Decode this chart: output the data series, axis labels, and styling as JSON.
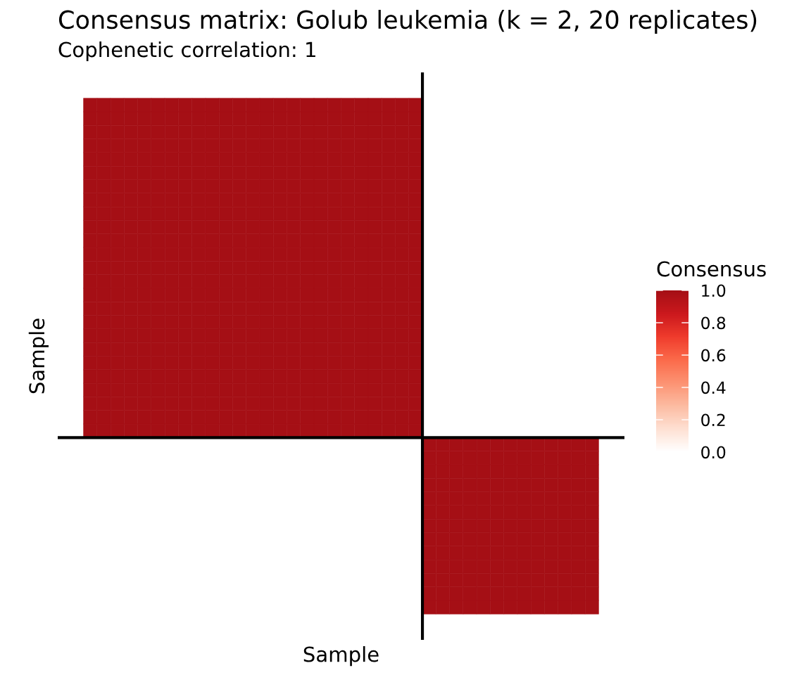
{
  "chart_data": {
    "type": "heatmap",
    "title": "Consensus matrix: Golub leukemia (k = 2, 20 replicates)",
    "subtitle": "Cophenetic correlation: 1",
    "xlabel": "Sample",
    "ylabel": "Sample",
    "clabel": "Consensus",
    "categories": [
      null,
      null,
      null,
      null,
      null,
      null,
      null,
      null,
      null,
      null,
      null,
      null,
      null,
      null,
      null,
      null,
      null,
      null,
      null,
      null,
      null,
      null,
      null,
      null,
      null,
      null,
      null,
      null,
      null,
      null,
      null,
      null,
      null,
      null,
      null,
      null,
      null,
      null
    ],
    "y_categories": [
      null,
      null,
      null,
      null,
      null,
      null,
      null,
      null,
      null,
      null,
      null,
      null,
      null,
      null,
      null,
      null,
      null,
      null,
      null,
      null,
      null,
      null,
      null,
      null,
      null,
      null,
      null,
      null,
      null,
      null,
      null,
      null,
      null,
      null,
      null,
      null,
      null,
      null
    ],
    "cells": [
      [
        1,
        1,
        1,
        1,
        1,
        1,
        1,
        1,
        1,
        1,
        1,
        1,
        1,
        1,
        1,
        1,
        1,
        1,
        1,
        1,
        1,
        1,
        1,
        1,
        1,
        0,
        0,
        0,
        0,
        0,
        0,
        0,
        0,
        0,
        0,
        0,
        0,
        0
      ],
      [
        1,
        1,
        1,
        1,
        1,
        1,
        1,
        1,
        1,
        1,
        1,
        1,
        1,
        1,
        1,
        1,
        1,
        1,
        1,
        1,
        1,
        1,
        1,
        1,
        1,
        0,
        0,
        0,
        0,
        0,
        0,
        0,
        0,
        0,
        0,
        0,
        0,
        0
      ],
      [
        1,
        1,
        1,
        1,
        1,
        1,
        1,
        1,
        1,
        1,
        1,
        1,
        1,
        1,
        1,
        1,
        1,
        1,
        1,
        1,
        1,
        1,
        1,
        1,
        1,
        0,
        0,
        0,
        0,
        0,
        0,
        0,
        0,
        0,
        0,
        0,
        0,
        0
      ],
      [
        1,
        1,
        1,
        1,
        1,
        1,
        1,
        1,
        1,
        1,
        1,
        1,
        1,
        1,
        1,
        1,
        1,
        1,
        1,
        1,
        1,
        1,
        1,
        1,
        1,
        0,
        0,
        0,
        0,
        0,
        0,
        0,
        0,
        0,
        0,
        0,
        0,
        0
      ],
      [
        1,
        1,
        1,
        1,
        1,
        1,
        1,
        1,
        1,
        1,
        1,
        1,
        1,
        1,
        1,
        1,
        1,
        1,
        1,
        1,
        1,
        1,
        1,
        1,
        1,
        0,
        0,
        0,
        0,
        0,
        0,
        0,
        0,
        0,
        0,
        0,
        0,
        0
      ],
      [
        1,
        1,
        1,
        1,
        1,
        1,
        1,
        1,
        1,
        1,
        1,
        1,
        1,
        1,
        1,
        1,
        1,
        1,
        1,
        1,
        1,
        1,
        1,
        1,
        1,
        0,
        0,
        0,
        0,
        0,
        0,
        0,
        0,
        0,
        0,
        0,
        0,
        0
      ],
      [
        1,
        1,
        1,
        1,
        1,
        1,
        1,
        1,
        1,
        1,
        1,
        1,
        1,
        1,
        1,
        1,
        1,
        1,
        1,
        1,
        1,
        1,
        1,
        1,
        1,
        0,
        0,
        0,
        0,
        0,
        0,
        0,
        0,
        0,
        0,
        0,
        0,
        0
      ],
      [
        1,
        1,
        1,
        1,
        1,
        1,
        1,
        1,
        1,
        1,
        1,
        1,
        1,
        1,
        1,
        1,
        1,
        1,
        1,
        1,
        1,
        1,
        1,
        1,
        1,
        0,
        0,
        0,
        0,
        0,
        0,
        0,
        0,
        0,
        0,
        0,
        0,
        0
      ],
      [
        1,
        1,
        1,
        1,
        1,
        1,
        1,
        1,
        1,
        1,
        1,
        1,
        1,
        1,
        1,
        1,
        1,
        1,
        1,
        1,
        1,
        1,
        1,
        1,
        1,
        0,
        0,
        0,
        0,
        0,
        0,
        0,
        0,
        0,
        0,
        0,
        0,
        0
      ],
      [
        1,
        1,
        1,
        1,
        1,
        1,
        1,
        1,
        1,
        1,
        1,
        1,
        1,
        1,
        1,
        1,
        1,
        1,
        1,
        1,
        1,
        1,
        1,
        1,
        1,
        0,
        0,
        0,
        0,
        0,
        0,
        0,
        0,
        0,
        0,
        0,
        0,
        0
      ],
      [
        1,
        1,
        1,
        1,
        1,
        1,
        1,
        1,
        1,
        1,
        1,
        1,
        1,
        1,
        1,
        1,
        1,
        1,
        1,
        1,
        1,
        1,
        1,
        1,
        1,
        0,
        0,
        0,
        0,
        0,
        0,
        0,
        0,
        0,
        0,
        0,
        0,
        0
      ],
      [
        1,
        1,
        1,
        1,
        1,
        1,
        1,
        1,
        1,
        1,
        1,
        1,
        1,
        1,
        1,
        1,
        1,
        1,
        1,
        1,
        1,
        1,
        1,
        1,
        1,
        0,
        0,
        0,
        0,
        0,
        0,
        0,
        0,
        0,
        0,
        0,
        0,
        0
      ],
      [
        1,
        1,
        1,
        1,
        1,
        1,
        1,
        1,
        1,
        1,
        1,
        1,
        1,
        1,
        1,
        1,
        1,
        1,
        1,
        1,
        1,
        1,
        1,
        1,
        1,
        0,
        0,
        0,
        0,
        0,
        0,
        0,
        0,
        0,
        0,
        0,
        0,
        0
      ],
      [
        1,
        1,
        1,
        1,
        1,
        1,
        1,
        1,
        1,
        1,
        1,
        1,
        1,
        1,
        1,
        1,
        1,
        1,
        1,
        1,
        1,
        1,
        1,
        1,
        1,
        0,
        0,
        0,
        0,
        0,
        0,
        0,
        0,
        0,
        0,
        0,
        0,
        0
      ],
      [
        1,
        1,
        1,
        1,
        1,
        1,
        1,
        1,
        1,
        1,
        1,
        1,
        1,
        1,
        1,
        1,
        1,
        1,
        1,
        1,
        1,
        1,
        1,
        1,
        1,
        0,
        0,
        0,
        0,
        0,
        0,
        0,
        0,
        0,
        0,
        0,
        0,
        0
      ],
      [
        1,
        1,
        1,
        1,
        1,
        1,
        1,
        1,
        1,
        1,
        1,
        1,
        1,
        1,
        1,
        1,
        1,
        1,
        1,
        1,
        1,
        1,
        1,
        1,
        1,
        0,
        0,
        0,
        0,
        0,
        0,
        0,
        0,
        0,
        0,
        0,
        0,
        0
      ],
      [
        1,
        1,
        1,
        1,
        1,
        1,
        1,
        1,
        1,
        1,
        1,
        1,
        1,
        1,
        1,
        1,
        1,
        1,
        1,
        1,
        1,
        1,
        1,
        1,
        1,
        0,
        0,
        0,
        0,
        0,
        0,
        0,
        0,
        0,
        0,
        0,
        0,
        0
      ],
      [
        1,
        1,
        1,
        1,
        1,
        1,
        1,
        1,
        1,
        1,
        1,
        1,
        1,
        1,
        1,
        1,
        1,
        1,
        1,
        1,
        1,
        1,
        1,
        1,
        1,
        0,
        0,
        0,
        0,
        0,
        0,
        0,
        0,
        0,
        0,
        0,
        0,
        0
      ],
      [
        1,
        1,
        1,
        1,
        1,
        1,
        1,
        1,
        1,
        1,
        1,
        1,
        1,
        1,
        1,
        1,
        1,
        1,
        1,
        1,
        1,
        1,
        1,
        1,
        1,
        0,
        0,
        0,
        0,
        0,
        0,
        0,
        0,
        0,
        0,
        0,
        0,
        0
      ],
      [
        1,
        1,
        1,
        1,
        1,
        1,
        1,
        1,
        1,
        1,
        1,
        1,
        1,
        1,
        1,
        1,
        1,
        1,
        1,
        1,
        1,
        1,
        1,
        1,
        1,
        0,
        0,
        0,
        0,
        0,
        0,
        0,
        0,
        0,
        0,
        0,
        0,
        0
      ],
      [
        1,
        1,
        1,
        1,
        1,
        1,
        1,
        1,
        1,
        1,
        1,
        1,
        1,
        1,
        1,
        1,
        1,
        1,
        1,
        1,
        1,
        1,
        1,
        1,
        1,
        0,
        0,
        0,
        0,
        0,
        0,
        0,
        0,
        0,
        0,
        0,
        0,
        0
      ],
      [
        1,
        1,
        1,
        1,
        1,
        1,
        1,
        1,
        1,
        1,
        1,
        1,
        1,
        1,
        1,
        1,
        1,
        1,
        1,
        1,
        1,
        1,
        1,
        1,
        1,
        0,
        0,
        0,
        0,
        0,
        0,
        0,
        0,
        0,
        0,
        0,
        0,
        0
      ],
      [
        1,
        1,
        1,
        1,
        1,
        1,
        1,
        1,
        1,
        1,
        1,
        1,
        1,
        1,
        1,
        1,
        1,
        1,
        1,
        1,
        1,
        1,
        1,
        1,
        1,
        0,
        0,
        0,
        0,
        0,
        0,
        0,
        0,
        0,
        0,
        0,
        0,
        0
      ],
      [
        1,
        1,
        1,
        1,
        1,
        1,
        1,
        1,
        1,
        1,
        1,
        1,
        1,
        1,
        1,
        1,
        1,
        1,
        1,
        1,
        1,
        1,
        1,
        1,
        1,
        0,
        0,
        0,
        0,
        0,
        0,
        0,
        0,
        0,
        0,
        0,
        0,
        0
      ],
      [
        1,
        1,
        1,
        1,
        1,
        1,
        1,
        1,
        1,
        1,
        1,
        1,
        1,
        1,
        1,
        1,
        1,
        1,
        1,
        1,
        1,
        1,
        1,
        1,
        1,
        0,
        0,
        0,
        0,
        0,
        0,
        0,
        0,
        0,
        0,
        0,
        0,
        0
      ],
      [
        0,
        0,
        0,
        0,
        0,
        0,
        0,
        0,
        0,
        0,
        0,
        0,
        0,
        0,
        0,
        0,
        0,
        0,
        0,
        0,
        0,
        0,
        0,
        0,
        0,
        1,
        1,
        1,
        1,
        1,
        1,
        1,
        1,
        1,
        1,
        1,
        1,
        1
      ],
      [
        0,
        0,
        0,
        0,
        0,
        0,
        0,
        0,
        0,
        0,
        0,
        0,
        0,
        0,
        0,
        0,
        0,
        0,
        0,
        0,
        0,
        0,
        0,
        0,
        0,
        1,
        1,
        1,
        1,
        1,
        1,
        1,
        1,
        1,
        1,
        1,
        1,
        1
      ],
      [
        0,
        0,
        0,
        0,
        0,
        0,
        0,
        0,
        0,
        0,
        0,
        0,
        0,
        0,
        0,
        0,
        0,
        0,
        0,
        0,
        0,
        0,
        0,
        0,
        0,
        1,
        1,
        1,
        1,
        1,
        1,
        1,
        1,
        1,
        1,
        1,
        1,
        1
      ],
      [
        0,
        0,
        0,
        0,
        0,
        0,
        0,
        0,
        0,
        0,
        0,
        0,
        0,
        0,
        0,
        0,
        0,
        0,
        0,
        0,
        0,
        0,
        0,
        0,
        0,
        1,
        1,
        1,
        1,
        1,
        1,
        1,
        1,
        1,
        1,
        1,
        1,
        1
      ],
      [
        0,
        0,
        0,
        0,
        0,
        0,
        0,
        0,
        0,
        0,
        0,
        0,
        0,
        0,
        0,
        0,
        0,
        0,
        0,
        0,
        0,
        0,
        0,
        0,
        0,
        1,
        1,
        1,
        1,
        1,
        1,
        1,
        1,
        1,
        1,
        1,
        1,
        1
      ],
      [
        0,
        0,
        0,
        0,
        0,
        0,
        0,
        0,
        0,
        0,
        0,
        0,
        0,
        0,
        0,
        0,
        0,
        0,
        0,
        0,
        0,
        0,
        0,
        0,
        0,
        1,
        1,
        1,
        1,
        1,
        1,
        1,
        1,
        1,
        1,
        1,
        1,
        1
      ],
      [
        0,
        0,
        0,
        0,
        0,
        0,
        0,
        0,
        0,
        0,
        0,
        0,
        0,
        0,
        0,
        0,
        0,
        0,
        0,
        0,
        0,
        0,
        0,
        0,
        0,
        1,
        1,
        1,
        1,
        1,
        1,
        1,
        1,
        1,
        1,
        1,
        1,
        1
      ],
      [
        0,
        0,
        0,
        0,
        0,
        0,
        0,
        0,
        0,
        0,
        0,
        0,
        0,
        0,
        0,
        0,
        0,
        0,
        0,
        0,
        0,
        0,
        0,
        0,
        0,
        1,
        1,
        1,
        1,
        1,
        1,
        1,
        1,
        1,
        1,
        1,
        1,
        1
      ],
      [
        0,
        0,
        0,
        0,
        0,
        0,
        0,
        0,
        0,
        0,
        0,
        0,
        0,
        0,
        0,
        0,
        0,
        0,
        0,
        0,
        0,
        0,
        0,
        0,
        0,
        1,
        1,
        1,
        1,
        1,
        1,
        1,
        1,
        1,
        1,
        1,
        1,
        1
      ],
      [
        0,
        0,
        0,
        0,
        0,
        0,
        0,
        0,
        0,
        0,
        0,
        0,
        0,
        0,
        0,
        0,
        0,
        0,
        0,
        0,
        0,
        0,
        0,
        0,
        0,
        1,
        1,
        1,
        1,
        1,
        1,
        1,
        1,
        1,
        1,
        1,
        1,
        1
      ],
      [
        0,
        0,
        0,
        0,
        0,
        0,
        0,
        0,
        0,
        0,
        0,
        0,
        0,
        0,
        0,
        0,
        0,
        0,
        0,
        0,
        0,
        0,
        0,
        0,
        0,
        1,
        1,
        1,
        1,
        1,
        1,
        1,
        1,
        1,
        1,
        1,
        1,
        1
      ],
      [
        0,
        0,
        0,
        0,
        0,
        0,
        0,
        0,
        0,
        0,
        0,
        0,
        0,
        0,
        0,
        0,
        0,
        0,
        0,
        0,
        0,
        0,
        0,
        0,
        0,
        1,
        1,
        1,
        1,
        1,
        1,
        1,
        1,
        1,
        1,
        1,
        1,
        1
      ],
      [
        0,
        0,
        0,
        0,
        0,
        0,
        0,
        0,
        0,
        0,
        0,
        0,
        0,
        0,
        0,
        0,
        0,
        0,
        0,
        0,
        0,
        0,
        0,
        0,
        0,
        1,
        1,
        1,
        1,
        1,
        1,
        1,
        1,
        1,
        1,
        1,
        1,
        1
      ]
    ],
    "colors": [
      "#ffffff",
      "#fee0d2",
      "#fcbba1",
      "#fc9272",
      "#fb6a4a",
      "#ef3b2c",
      "#cb181d",
      "#a50f15"
    ],
    "clim": [
      0,
      1
    ],
    "cticks": [
      {
        "value": 0,
        "label": "0.0"
      },
      {
        "value": 0.2,
        "label": "0.2"
      },
      {
        "value": 0.4,
        "label": "0.4"
      },
      {
        "value": 0.6,
        "label": "0.6"
      },
      {
        "value": 0.8,
        "label": "0.8"
      },
      {
        "value": 1,
        "label": "1.0"
      }
    ]
  }
}
